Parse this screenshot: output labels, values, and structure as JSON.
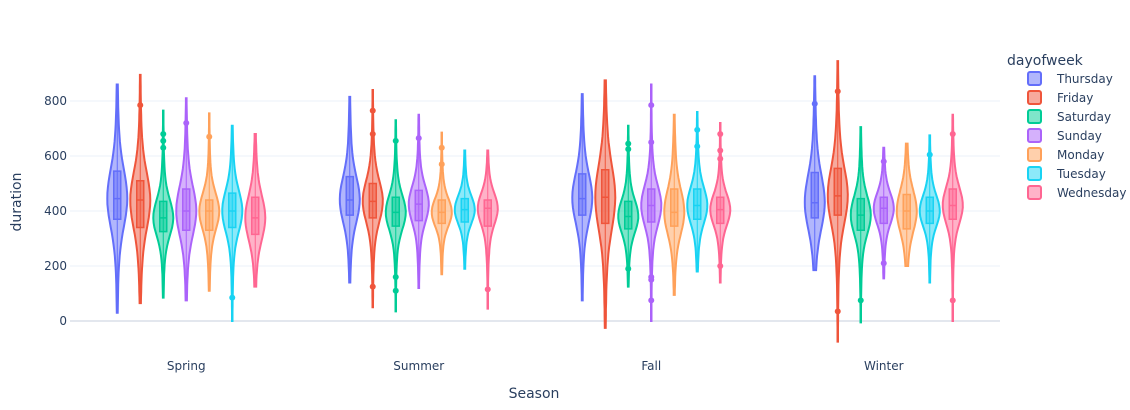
{
  "chart_data": {
    "type": "violin",
    "xlabel": "Season",
    "ylabel": "duration",
    "categories": [
      "Spring",
      "Summer",
      "Fall",
      "Winter"
    ],
    "yticks": [
      0,
      200,
      400,
      600,
      800
    ],
    "ylim": [
      -90,
      960
    ],
    "grid": true,
    "legend": {
      "title": "dayofweek",
      "placement": "right"
    },
    "series": [
      {
        "name": "Thursday",
        "color": "#636efa",
        "stats": [
          {
            "min": 30,
            "q1": 370,
            "median": 445,
            "q3": 545,
            "max": 860,
            "outliers": []
          },
          {
            "min": 140,
            "q1": 385,
            "median": 440,
            "q3": 525,
            "max": 815,
            "outliers": []
          },
          {
            "min": 75,
            "q1": 385,
            "median": 445,
            "q3": 535,
            "max": 825,
            "outliers": []
          },
          {
            "min": 185,
            "q1": 375,
            "median": 430,
            "q3": 540,
            "max": 890,
            "outliers": [
              790
            ]
          }
        ]
      },
      {
        "name": "Friday",
        "color": "#ef553b",
        "stats": [
          {
            "min": 65,
            "q1": 340,
            "median": 440,
            "q3": 510,
            "max": 895,
            "outliers": [
              785
            ]
          },
          {
            "min": 50,
            "q1": 375,
            "median": 435,
            "q3": 500,
            "max": 840,
            "outliers": [
              765,
              680,
              125
            ]
          },
          {
            "min": -25,
            "q1": 355,
            "median": 450,
            "q3": 550,
            "max": 875,
            "outliers": []
          },
          {
            "min": -75,
            "q1": 385,
            "median": 455,
            "q3": 555,
            "max": 945,
            "outliers": [
              835,
              35
            ]
          }
        ]
      },
      {
        "name": "Saturday",
        "color": "#00cc96",
        "stats": [
          {
            "min": 85,
            "q1": 325,
            "median": 375,
            "q3": 435,
            "max": 765,
            "outliers": [
              680,
              655,
              630
            ]
          },
          {
            "min": 35,
            "q1": 345,
            "median": 395,
            "q3": 450,
            "max": 730,
            "outliers": [
              655,
              160,
              110
            ]
          },
          {
            "min": 125,
            "q1": 335,
            "median": 380,
            "q3": 435,
            "max": 710,
            "outliers": [
              645,
              625,
              190
            ]
          },
          {
            "min": -5,
            "q1": 330,
            "median": 385,
            "q3": 445,
            "max": 705,
            "outliers": [
              75
            ]
          }
        ]
      },
      {
        "name": "Sunday",
        "color": "#ab63fa",
        "stats": [
          {
            "min": 75,
            "q1": 330,
            "median": 400,
            "q3": 480,
            "max": 810,
            "outliers": [
              720
            ]
          },
          {
            "min": 120,
            "q1": 365,
            "median": 425,
            "q3": 475,
            "max": 750,
            "outliers": [
              665
            ]
          },
          {
            "min": 0,
            "q1": 360,
            "median": 420,
            "q3": 480,
            "max": 860,
            "outliers": [
              785,
              650,
              160,
              150,
              75
            ]
          },
          {
            "min": 155,
            "q1": 355,
            "median": 410,
            "q3": 450,
            "max": 630,
            "outliers": [
              580,
              210
            ]
          }
        ]
      },
      {
        "name": "Monday",
        "color": "#ffa15a",
        "stats": [
          {
            "min": 110,
            "q1": 330,
            "median": 400,
            "q3": 440,
            "max": 755,
            "outliers": [
              670
            ]
          },
          {
            "min": 170,
            "q1": 355,
            "median": 395,
            "q3": 440,
            "max": 685,
            "outliers": [
              630,
              570
            ]
          },
          {
            "min": 95,
            "q1": 345,
            "median": 395,
            "q3": 480,
            "max": 750,
            "outliers": []
          },
          {
            "min": 200,
            "q1": 335,
            "median": 400,
            "q3": 460,
            "max": 645,
            "outliers": []
          }
        ]
      },
      {
        "name": "Tuesday",
        "color": "#19d3f3",
        "stats": [
          {
            "min": 0,
            "q1": 340,
            "median": 400,
            "q3": 465,
            "max": 710,
            "outliers": [
              85
            ]
          },
          {
            "min": 190,
            "q1": 360,
            "median": 405,
            "q3": 445,
            "max": 620,
            "outliers": []
          },
          {
            "min": 180,
            "q1": 370,
            "median": 420,
            "q3": 480,
            "max": 760,
            "outliers": [
              695,
              635
            ]
          },
          {
            "min": 140,
            "q1": 355,
            "median": 400,
            "q3": 450,
            "max": 675,
            "outliers": [
              605
            ]
          }
        ]
      },
      {
        "name": "Wednesday",
        "color": "#ff6692",
        "stats": [
          {
            "min": 125,
            "q1": 315,
            "median": 375,
            "q3": 450,
            "max": 680,
            "outliers": []
          },
          {
            "min": 45,
            "q1": 345,
            "median": 410,
            "q3": 440,
            "max": 620,
            "outliers": [
              115
            ]
          },
          {
            "min": 140,
            "q1": 355,
            "median": 405,
            "q3": 450,
            "max": 720,
            "outliers": [
              680,
              620,
              590,
              200
            ]
          },
          {
            "min": 0,
            "q1": 370,
            "median": 420,
            "q3": 480,
            "max": 750,
            "outliers": [
              680,
              75
            ]
          }
        ]
      }
    ]
  }
}
